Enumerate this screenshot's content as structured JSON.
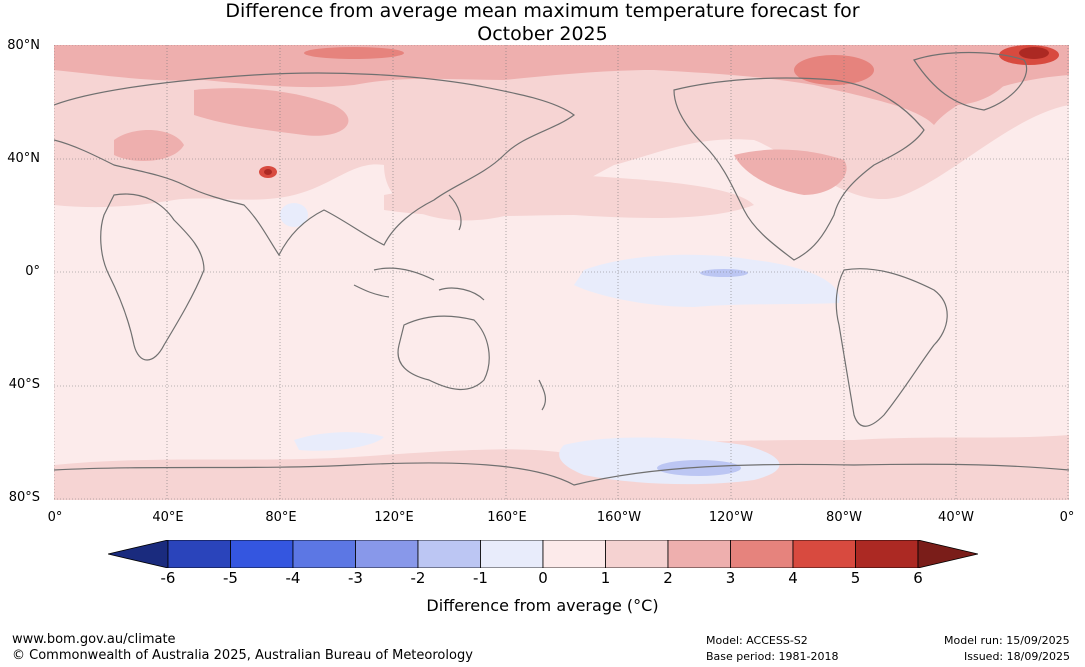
{
  "title_line1": "Difference from average mean maximum temperature forecast for",
  "title_line2": "October 2025",
  "lat_labels": [
    "80°N",
    "40°N",
    "0°",
    "40°S",
    "80°S"
  ],
  "lon_labels": [
    "0°",
    "40°E",
    "80°E",
    "120°E",
    "160°E",
    "160°W",
    "120°W",
    "80°W",
    "40°W",
    "0°"
  ],
  "colorbar": {
    "ticks": [
      "-6",
      "-5",
      "-4",
      "-3",
      "-2",
      "-1",
      "0",
      "1",
      "2",
      "3",
      "4",
      "5",
      "6"
    ],
    "colors": [
      "#1a2b7e",
      "#2a44bb",
      "#3456e0",
      "#5c77e4",
      "#8898ea",
      "#bcc6f3",
      "#e8ecfb",
      "#fceaea",
      "#f5d2d1",
      "#eeafae",
      "#e6837d",
      "#d84a3f",
      "#ac2923",
      "#7a1d19"
    ],
    "title": "Difference from average (°C)"
  },
  "footer": {
    "website": "www.bom.gov.au/climate",
    "copyright": "© Commonwealth of Australia 2025, Australian Bureau of Meteorology",
    "model": "Model: ACCESS-S2",
    "base_period": "Base period: 1981-2018",
    "model_run": "Model run: 15/09/2025",
    "issued": "Issued: 18/09/2025"
  }
}
